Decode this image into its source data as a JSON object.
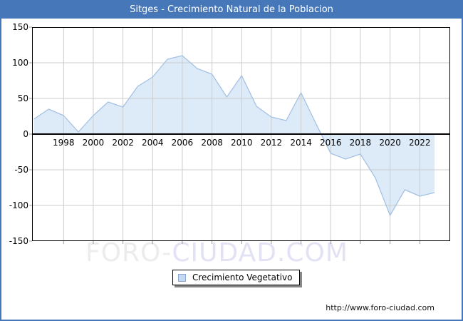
{
  "window": {
    "title": "Sitges - Crecimiento Natural de la Poblacion"
  },
  "chart_data": {
    "type": "area",
    "title": "Sitges - Crecimiento Natural de la Poblacion",
    "xlabel": "",
    "ylabel": "",
    "x": [
      1996,
      1997,
      1998,
      1999,
      2000,
      2001,
      2002,
      2003,
      2004,
      2005,
      2006,
      2007,
      2008,
      2009,
      2010,
      2011,
      2012,
      2013,
      2014,
      2015,
      2016,
      2017,
      2018,
      2019,
      2020,
      2021,
      2022,
      2023
    ],
    "series": [
      {
        "name": "Crecimiento Vegetativo",
        "values": [
          21,
          35,
          26,
          3,
          26,
          45,
          38,
          67,
          80,
          105,
          110,
          92,
          84,
          52,
          82,
          39,
          24,
          19,
          58,
          15,
          -27,
          -35,
          -28,
          -61,
          -114,
          -78,
          -87,
          -82
        ]
      }
    ],
    "ylim": [
      -150,
      150
    ],
    "yticks": [
      150,
      100,
      50,
      0,
      -50,
      -100,
      -150
    ],
    "xticks": [
      1998,
      2000,
      2002,
      2004,
      2006,
      2008,
      2010,
      2012,
      2014,
      2016,
      2018,
      2020,
      2022
    ],
    "grid": true,
    "legend_position": "bottom-center",
    "colors": {
      "line": "#a5c2e3",
      "fill": "#ddeaf8",
      "grid": "#cccccc",
      "axis": "#000000",
      "frame": "#4677b8"
    }
  },
  "legend": {
    "label": "Crecimiento Vegetativo"
  },
  "watermark": {
    "part1": "FORO-",
    "part2": "CIUDAD.COM"
  },
  "footer": {
    "url": "http://www.foro-ciudad.com"
  }
}
